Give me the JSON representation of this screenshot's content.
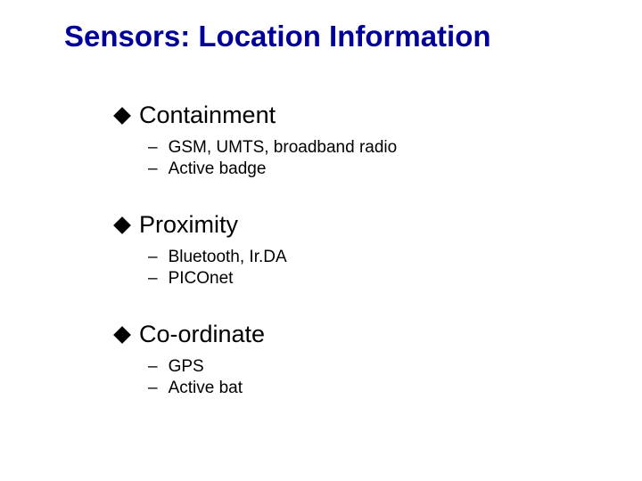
{
  "slide": {
    "title": "Sensors: Location Information",
    "title_color": "#000099",
    "title_fontsize": 33,
    "background_color": "#ffffff",
    "bullet_color": "#000000",
    "text_color": "#000000",
    "main_fontsize": 27,
    "sub_fontsize": 19,
    "sections": [
      {
        "label": "Containment",
        "items": [
          {
            "text": "GSM, UMTS, broadband radio"
          },
          {
            "text": "Active badge"
          }
        ]
      },
      {
        "label": "Proximity",
        "items": [
          {
            "text": "Bluetooth, Ir.DA"
          },
          {
            "text": "PICOnet"
          }
        ]
      },
      {
        "label": "Co-ordinate",
        "items": [
          {
            "text": "GPS"
          },
          {
            "text": "Active bat"
          }
        ]
      }
    ]
  }
}
